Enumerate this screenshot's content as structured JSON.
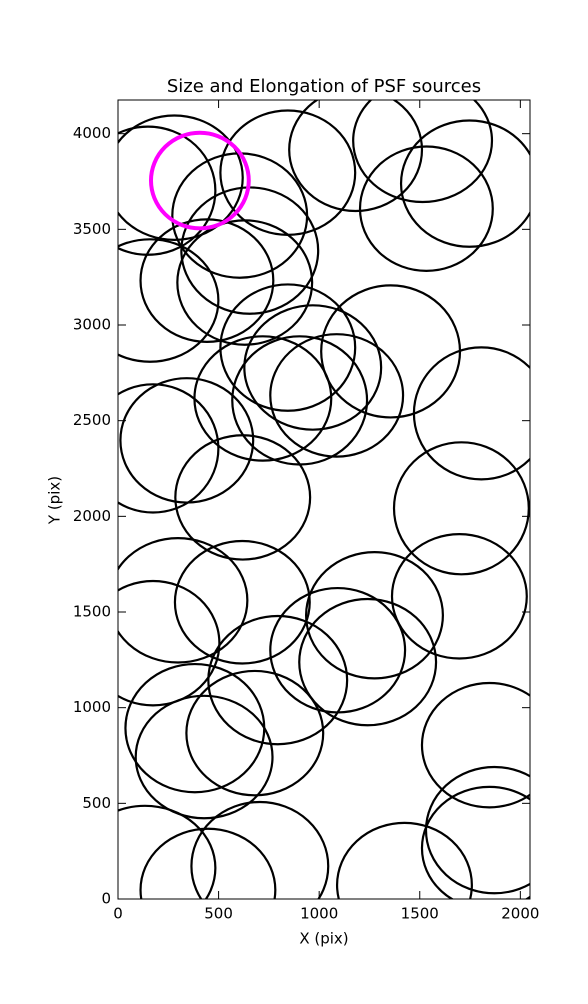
{
  "chart_data": {
    "type": "ellipse",
    "title": "Size and Elongation of PSF sources",
    "xlabel": "X (pix)",
    "ylabel": "Y (pix)",
    "xlim": [
      0,
      2048
    ],
    "ylim": [
      0,
      4176
    ],
    "xticks": [
      0,
      500,
      1000,
      1500,
      2000
    ],
    "yticks": [
      0,
      500,
      1000,
      1500,
      2000,
      2500,
      3000,
      3500,
      4000
    ],
    "series": [
      {
        "color": "#000000",
        "x": [
          149,
          280,
          844,
          1181,
          1514,
          1747,
          1533,
          605,
          655,
          630,
          442,
          159,
          844,
          1355,
          968,
          903,
          1087,
          720,
          1806,
          342,
          174,
          620,
          1707,
          298,
          618,
          1275,
          1697,
          174,
          1092,
          1241,
          794,
          382,
          680,
          428,
          1846,
          1871,
          1846,
          134,
          705,
          447,
          1424
        ],
        "y": [
          3702,
          3770,
          3796,
          3916,
          3963,
          3739,
          3608,
          3572,
          3389,
          3222,
          3232,
          3128,
          2882,
          2862,
          2778,
          2606,
          2632,
          2616,
          2538,
          2397,
          2355,
          2099,
          2042,
          1561,
          1551,
          1483,
          1582,
          1337,
          1300,
          1238,
          1144,
          893,
          867,
          742,
          804,
          360,
          266,
          162,
          172,
          47,
          73
        ],
        "width": [
          670,
          680,
          670,
          660,
          690,
          680,
          660,
          670,
          680,
          670,
          660,
          680,
          670,
          690,
          680,
          670,
          660,
          680,
          670,
          660,
          650,
          670,
          670,
          690,
          670,
          680,
          670,
          660,
          670,
          680,
          690,
          690,
          680,
          680,
          670,
          680,
          670,
          700,
          680,
          670,
          670
        ],
        "height": [
          670,
          650,
          650,
          640,
          640,
          660,
          650,
          650,
          660,
          650,
          640,
          640,
          660,
          690,
          650,
          670,
          640,
          650,
          690,
          650,
          670,
          650,
          690,
          650,
          640,
          660,
          650,
          650,
          650,
          660,
          670,
          670,
          650,
          640,
          650,
          660,
          640,
          650,
          670,
          640,
          650
        ]
      },
      {
        "color": "#ff00ff",
        "x": [
          407
        ],
        "y": [
          3755
        ],
        "width": [
          486
        ],
        "height": [
          500
        ]
      }
    ]
  }
}
